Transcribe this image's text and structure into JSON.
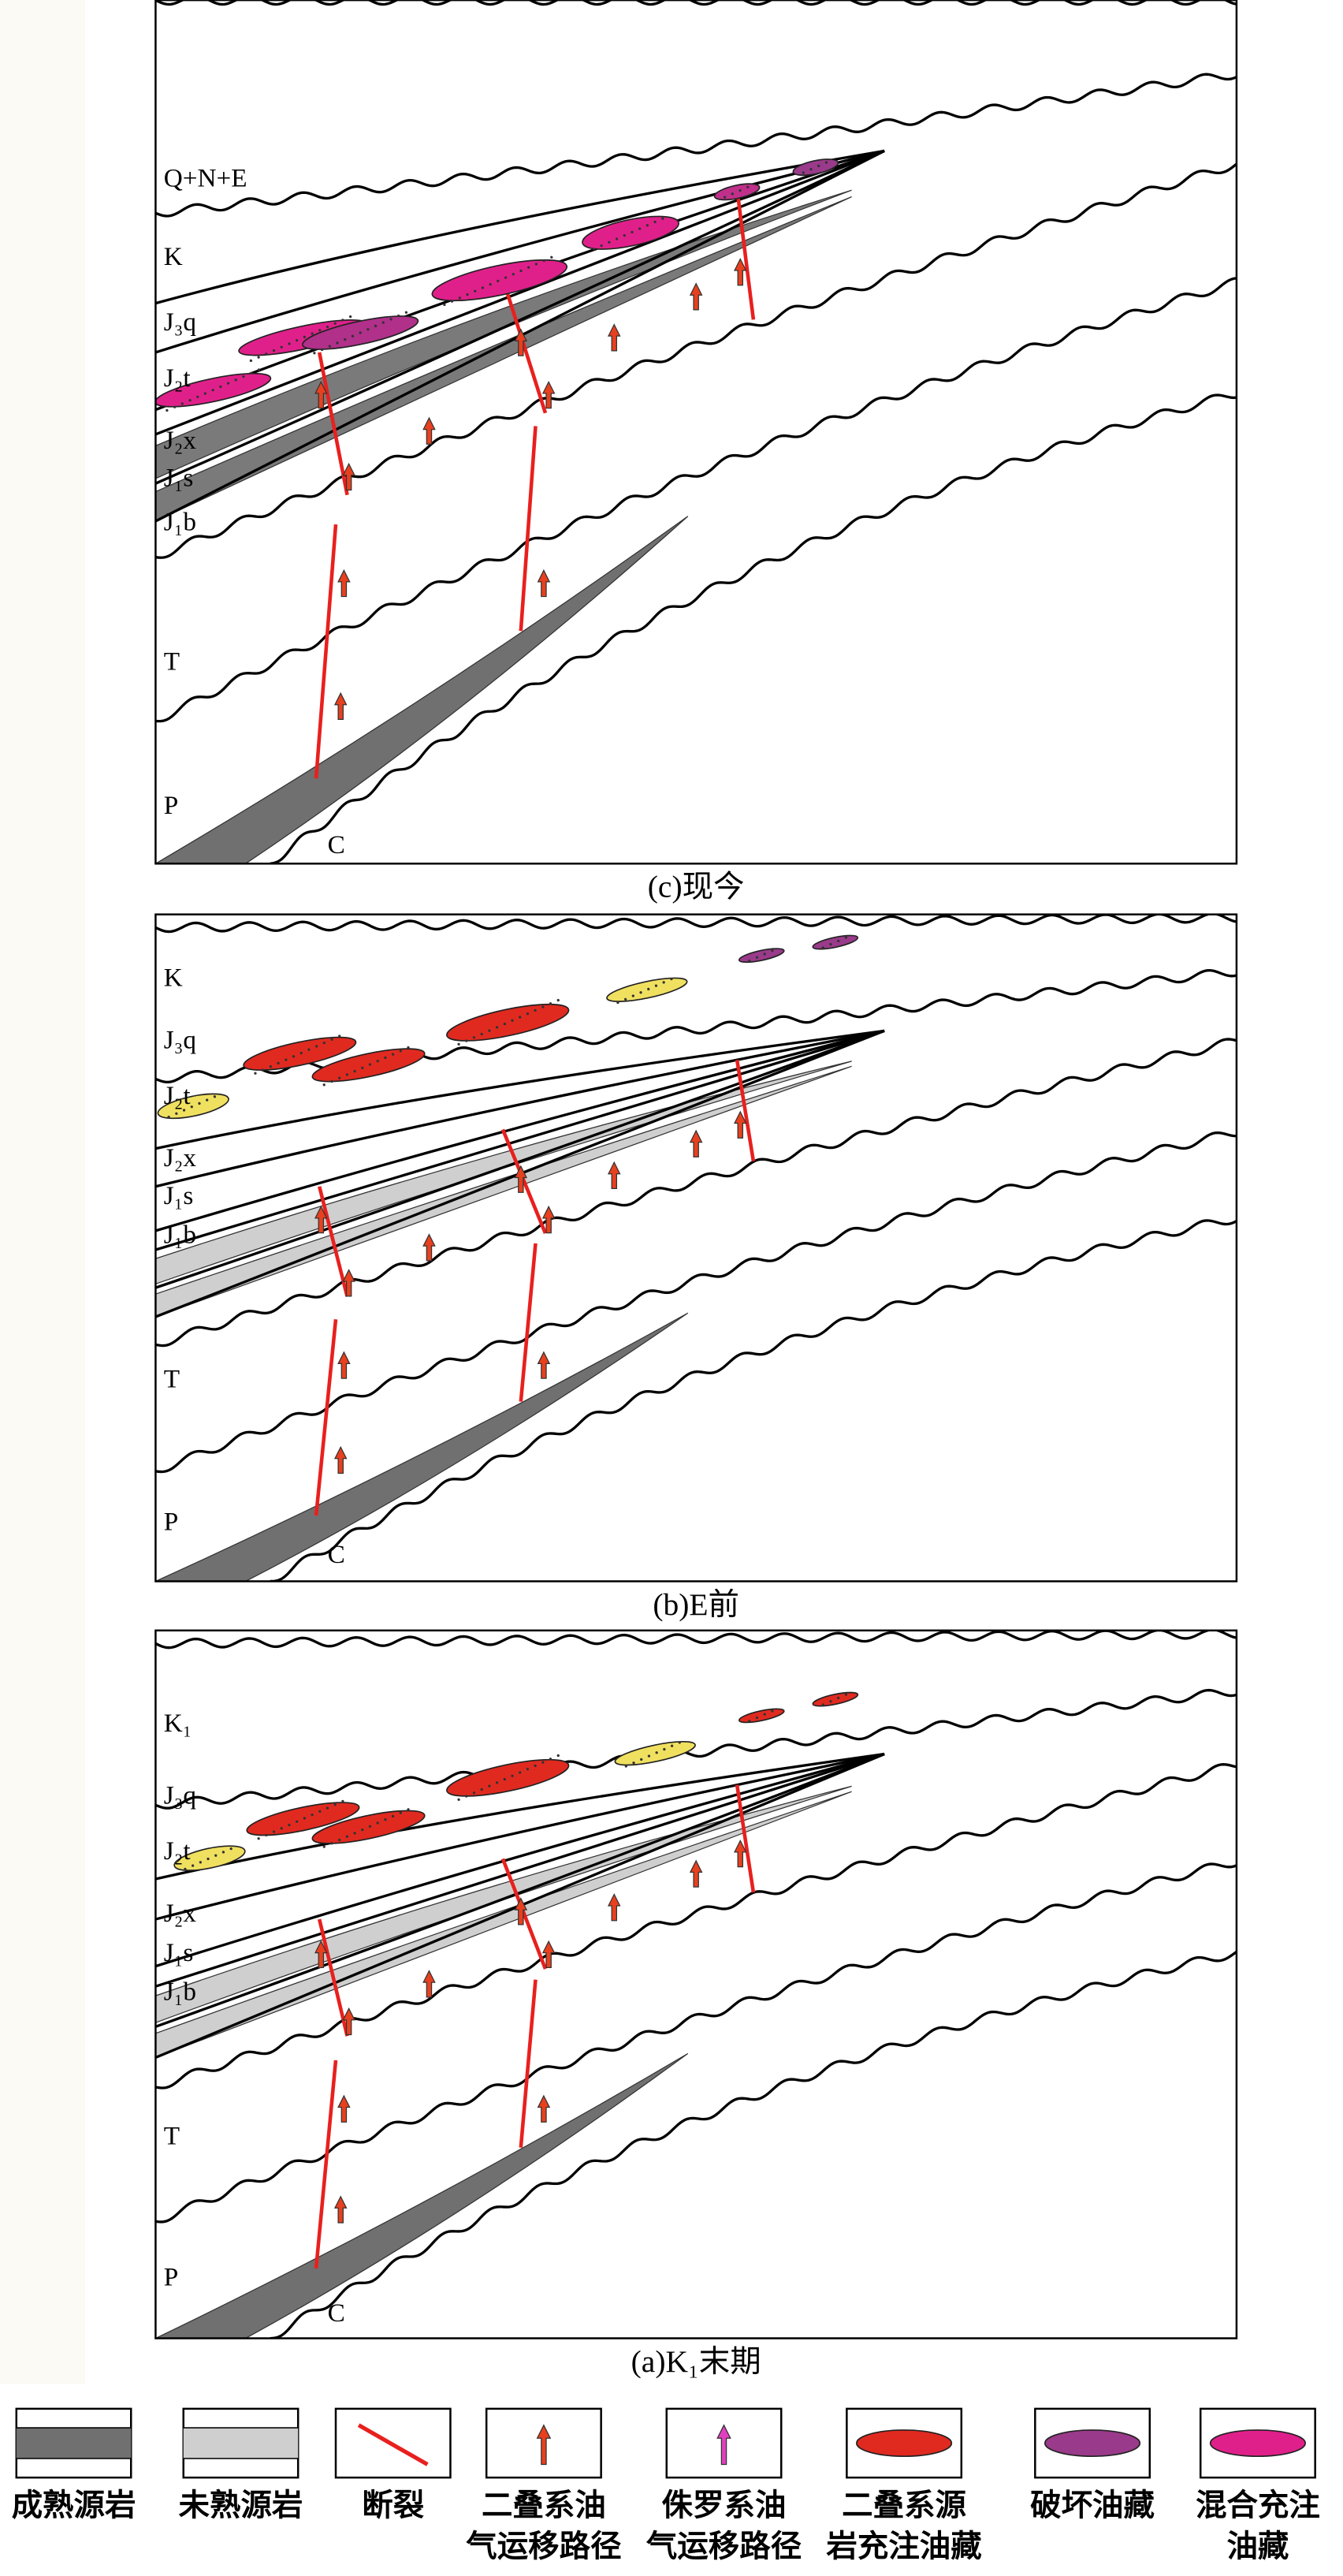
{
  "panels": [
    {
      "caption": "(c)现今",
      "layers": [
        "Q+N+E",
        "K",
        "J₃q",
        "J₂t",
        "J₂x",
        "J₁s",
        "J₁b",
        "T",
        "P",
        "C"
      ]
    },
    {
      "caption": "(b)E前",
      "layers": [
        "K",
        "J₃q",
        "J₂t",
        "J₂x",
        "J₁s",
        "J₁b",
        "T",
        "P",
        "C"
      ]
    },
    {
      "caption": "(a)K₁末期",
      "layers": [
        "K₁",
        "J₃q",
        "J₂t",
        "J₂x",
        "J₁s",
        "J₁b",
        "T",
        "P",
        "C"
      ]
    }
  ],
  "legend": [
    {
      "lines": [
        "成熟源岩"
      ]
    },
    {
      "lines": [
        "未熟源岩"
      ]
    },
    {
      "lines": [
        "断裂"
      ]
    },
    {
      "lines": [
        "二叠系油",
        "气运移路径"
      ]
    },
    {
      "lines": [
        "侏罗系油",
        "气运移路径"
      ]
    },
    {
      "lines": [
        "二叠系源",
        "岩充注油藏"
      ]
    },
    {
      "lines": [
        "破坏油藏"
      ]
    },
    {
      "lines": [
        "混合充注",
        "油藏"
      ]
    }
  ]
}
